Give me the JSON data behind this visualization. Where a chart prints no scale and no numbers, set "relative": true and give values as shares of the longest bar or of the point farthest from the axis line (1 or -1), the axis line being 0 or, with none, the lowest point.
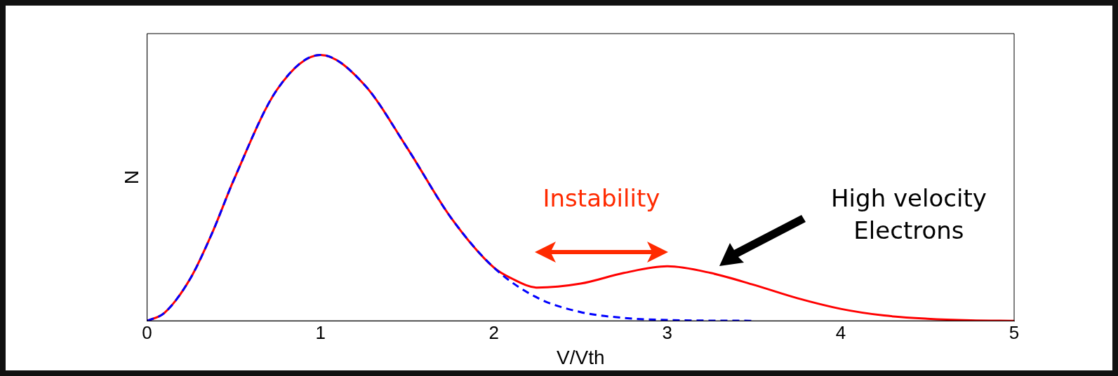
{
  "chart_data": {
    "type": "line",
    "relative": true,
    "xlabel": "V/Vth",
    "ylabel": "N",
    "xlim": [
      0,
      5
    ],
    "xticks": [
      0,
      1,
      2,
      3,
      4,
      5
    ],
    "grid": false,
    "legend": false,
    "marker": "none",
    "series": [
      {
        "color": "#ff0000",
        "line_style": "solid",
        "x": [
          0,
          0.1,
          0.25,
          0.375,
          0.5,
          0.75,
          1,
          1.25,
          1.5,
          1.75,
          2,
          2.1,
          2.25,
          2.5,
          2.75,
          3,
          3.25,
          3.5,
          3.75,
          4,
          4.25,
          4.5,
          4.75,
          5
        ],
        "values": [
          0,
          0.03,
          0.16,
          0.33,
          0.53,
          0.87,
          1,
          0.89,
          0.65,
          0.39,
          0.2,
          0.16,
          0.125,
          0.14,
          0.18,
          0.205,
          0.18,
          0.135,
          0.085,
          0.045,
          0.02,
          0.008,
          0.002,
          0
        ]
      },
      {
        "color": "#0000ff",
        "line_style": "dashed",
        "x": [
          0,
          0.1,
          0.25,
          0.375,
          0.5,
          0.75,
          1,
          1.25,
          1.5,
          1.75,
          2,
          2.25,
          2.5,
          2.75,
          3,
          3.5
        ],
        "values": [
          0,
          0.03,
          0.16,
          0.33,
          0.53,
          0.87,
          1,
          0.89,
          0.65,
          0.39,
          0.2,
          0.087,
          0.033,
          0.011,
          0.003,
          0
        ]
      }
    ],
    "annotations": [
      "Instability",
      "High velocity\nElectrons"
    ]
  }
}
